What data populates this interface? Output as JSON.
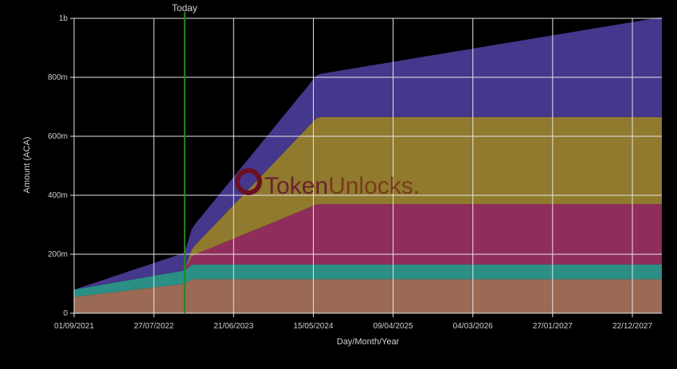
{
  "chart_data": {
    "type": "area",
    "stacked": true,
    "xlabel": "Day/Month/Year",
    "ylabel": "Amount (ACA)",
    "x_ticks": [
      "01/09/2021",
      "27/07/2022",
      "21/06/2023",
      "15/05/2024",
      "09/04/2025",
      "04/03/2026",
      "27/01/2027",
      "22/12/2027"
    ],
    "y_ticks": [
      "0",
      "200m",
      "400m",
      "600m",
      "800m",
      "1b"
    ],
    "ylim": [
      0,
      1000
    ],
    "y_unit": "m",
    "grid": true,
    "today": {
      "label": "Today",
      "date": "2022-12-01",
      "color": "#1f8a1f"
    },
    "watermark": {
      "part1": "Token",
      "part2": "Unlocks",
      "dot": "."
    },
    "colors": {
      "background": "#000000",
      "grid": "#e6e6e6",
      "series_1": "#9a6a55",
      "series_2": "#2b8f85",
      "series_3": "#8f2d5c",
      "series_4": "#8f7a2e",
      "series_5": "#45378c"
    },
    "series": [
      {
        "color": "#9a6a55",
        "points": [
          [
            "2021-09-01",
            55
          ],
          [
            "2022-12-01",
            100
          ],
          [
            "2023-01-01",
            115
          ],
          [
            "2028-04-30",
            115
          ]
        ]
      },
      {
        "color": "#2b8f85",
        "points": [
          [
            "2021-09-01",
            25
          ],
          [
            "2022-12-01",
            45
          ],
          [
            "2023-01-01",
            50
          ],
          [
            "2028-04-30",
            50
          ]
        ]
      },
      {
        "color": "#8f2d5c",
        "points": [
          [
            "2021-09-01",
            0
          ],
          [
            "2022-12-01",
            0
          ],
          [
            "2023-01-01",
            30
          ],
          [
            "2024-06-01",
            205
          ],
          [
            "2028-04-30",
            205
          ]
        ]
      },
      {
        "color": "#8f7a2e",
        "points": [
          [
            "2021-09-01",
            0
          ],
          [
            "2022-12-01",
            0
          ],
          [
            "2023-01-01",
            25
          ],
          [
            "2024-06-01",
            295
          ],
          [
            "2028-04-30",
            295
          ]
        ]
      },
      {
        "color": "#45378c",
        "points": [
          [
            "2021-09-01",
            0
          ],
          [
            "2022-12-01",
            60
          ],
          [
            "2023-01-01",
            70
          ],
          [
            "2024-06-01",
            145
          ],
          [
            "2028-04-30",
            340
          ]
        ]
      }
    ]
  }
}
